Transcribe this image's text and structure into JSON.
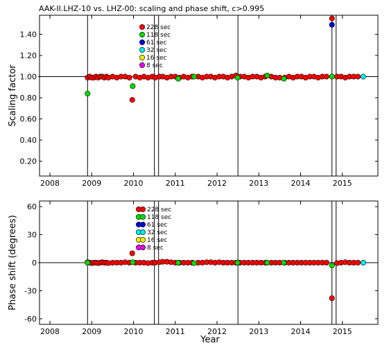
{
  "title": "AAK-II.LHZ-10 vs. LHZ-00: scaling and phase shift, c>0.995",
  "xlabel": "Year",
  "x_tick_labels": [
    "2008",
    "2009",
    "2010",
    "2011",
    "2012",
    "2013",
    "2014",
    "2015"
  ],
  "legend": [
    {
      "label": "228  sec",
      "color": "#ff0000"
    },
    {
      "label": "118  sec",
      "color": "#00dd00"
    },
    {
      "label": "  61  sec",
      "color": "#0000dd"
    },
    {
      "label": "  32  sec",
      "color": "#00eeee"
    },
    {
      "label": "  16  sec",
      "color": "#eeee00"
    },
    {
      "label": "    8  sec",
      "color": "#ee00ee"
    }
  ],
  "chart_data": [
    {
      "type": "scatter",
      "ylabel": "Scaling factor",
      "xlim": [
        2007.75,
        2015.85
      ],
      "ylim": [
        0.06,
        1.58
      ],
      "yticks": [
        0.2,
        0.4,
        0.6,
        0.8,
        1.0,
        1.2,
        1.4
      ],
      "y_tick_labels": [
        "0.20",
        "0.40",
        "0.60",
        "0.80",
        "1.00",
        "1.20",
        "1.40"
      ],
      "reference_line": 1.0,
      "event_lines": [
        2008.9,
        2010.5,
        2010.6,
        2012.5,
        2014.75,
        2014.85
      ],
      "series": [
        {
          "name": "228  sec",
          "x": [
            2008.9,
            2008.95,
            2009.0,
            2009.05,
            2009.1,
            2009.15,
            2009.2,
            2009.25,
            2009.3,
            2009.35,
            2009.4,
            2009.5,
            2009.6,
            2009.7,
            2009.8,
            2009.9,
            2009.97,
            2010.05,
            2010.15,
            2010.25,
            2010.35,
            2010.45,
            2010.52,
            2010.62,
            2010.7,
            2010.8,
            2010.9,
            2011.0,
            2011.1,
            2011.2,
            2011.3,
            2011.4,
            2011.55,
            2011.65,
            2011.75,
            2011.85,
            2011.95,
            2012.05,
            2012.15,
            2012.25,
            2012.35,
            2012.45,
            2012.55,
            2012.65,
            2012.75,
            2012.85,
            2012.95,
            2013.05,
            2013.15,
            2013.3,
            2013.4,
            2013.5,
            2013.62,
            2013.72,
            2013.82,
            2013.92,
            2014.02,
            2014.12,
            2014.22,
            2014.32,
            2014.42,
            2014.52,
            2014.62,
            2014.75,
            2014.87,
            2014.97,
            2015.07,
            2015.17,
            2015.27,
            2015.37
          ],
          "values": [
            0.99,
            1.0,
            0.99,
            0.99,
            1.0,
            0.99,
            1.0,
            1.0,
            0.99,
            1.0,
            0.99,
            1.0,
            0.99,
            1.0,
            1.0,
            0.99,
            0.78,
            1.0,
            0.99,
            1.0,
            0.99,
            1.0,
            0.99,
            1.0,
            1.0,
            0.99,
            1.0,
            1.0,
            0.99,
            1.0,
            0.99,
            1.0,
            1.0,
            0.99,
            1.0,
            1.0,
            0.99,
            1.0,
            1.0,
            0.99,
            1.0,
            1.01,
            1.0,
            1.0,
            0.99,
            1.0,
            1.0,
            0.99,
            1.0,
            1.0,
            0.99,
            0.99,
            0.99,
            1.0,
            0.99,
            1.0,
            1.0,
            0.99,
            1.0,
            1.0,
            0.99,
            1.0,
            1.0,
            1.55,
            1.0,
            1.0,
            0.99,
            1.0,
            1.0,
            1.0
          ],
          "color": "#ff0000"
        },
        {
          "name": "118  sec",
          "x": [
            2008.9,
            2009.98,
            2011.07,
            2011.45,
            2012.49,
            2013.2,
            2013.6,
            2014.75
          ],
          "values": [
            0.84,
            0.91,
            0.98,
            1.0,
            0.99,
            1.01,
            0.98,
            1.0
          ],
          "color": "#00dd00"
        },
        {
          "name": "  61  sec",
          "x": [
            2014.75
          ],
          "values": [
            1.49
          ],
          "color": "#0000dd"
        },
        {
          "name": "  32  sec",
          "x": [
            2015.5
          ],
          "values": [
            1.0
          ],
          "color": "#00eeee"
        }
      ]
    },
    {
      "type": "scatter",
      "ylabel": "Phase shift (degrees)",
      "xlim": [
        2007.75,
        2015.85
      ],
      "ylim": [
        -66,
        66
      ],
      "yticks": [
        -60,
        -30,
        0,
        30,
        60
      ],
      "y_tick_labels": [
        "-60",
        "-30",
        "0",
        "30",
        "60"
      ],
      "reference_line": 0,
      "event_lines": [
        2008.9,
        2010.5,
        2010.6,
        2012.5,
        2014.75,
        2014.85
      ],
      "series": [
        {
          "name": "228  sec",
          "x": [
            2008.9,
            2008.95,
            2009.0,
            2009.05,
            2009.1,
            2009.15,
            2009.2,
            2009.25,
            2009.3,
            2009.35,
            2009.4,
            2009.5,
            2009.6,
            2009.7,
            2009.8,
            2009.9,
            2009.97,
            2010.05,
            2010.15,
            2010.25,
            2010.35,
            2010.45,
            2010.52,
            2010.62,
            2010.7,
            2010.8,
            2010.9,
            2011.0,
            2011.1,
            2011.2,
            2011.3,
            2011.4,
            2011.55,
            2011.65,
            2011.75,
            2011.85,
            2011.95,
            2012.05,
            2012.15,
            2012.25,
            2012.35,
            2012.45,
            2012.55,
            2012.65,
            2012.75,
            2012.85,
            2012.95,
            2013.05,
            2013.15,
            2013.3,
            2013.4,
            2013.5,
            2013.62,
            2013.72,
            2013.82,
            2013.92,
            2014.02,
            2014.12,
            2014.22,
            2014.32,
            2014.42,
            2014.52,
            2014.62,
            2014.75,
            2014.87,
            2014.97,
            2015.07,
            2015.17,
            2015.27,
            2015.37
          ],
          "values": [
            0.5,
            0.0,
            -0.5,
            0.0,
            0.0,
            -0.5,
            0.0,
            0.5,
            0.0,
            0.0,
            -0.5,
            0.0,
            0.0,
            0.0,
            0.5,
            0.0,
            10.0,
            0.0,
            0.0,
            0.0,
            -0.5,
            0.0,
            0.0,
            0.5,
            1.0,
            1.0,
            0.5,
            0.0,
            0.0,
            0.0,
            0.0,
            0.0,
            0.0,
            0.0,
            0.5,
            0.5,
            0.0,
            0.5,
            0.0,
            0.0,
            0.0,
            0.0,
            0.0,
            0.0,
            0.0,
            0.0,
            0.0,
            0.0,
            0.0,
            0.0,
            0.0,
            0.0,
            0.0,
            0.0,
            0.0,
            0.0,
            0.0,
            0.0,
            0.0,
            0.0,
            0.0,
            0.0,
            0.0,
            -38.0,
            -0.5,
            0.0,
            0.5,
            0.0,
            0.0,
            0.0
          ],
          "color": "#ff0000"
        },
        {
          "name": "118  sec",
          "x": [
            2008.9,
            2009.98,
            2011.07,
            2011.45,
            2012.49,
            2013.2,
            2013.6,
            2014.75
          ],
          "values": [
            0.0,
            0.5,
            0.0,
            -0.5,
            0.0,
            0.0,
            0.0,
            -3.0
          ],
          "color": "#00dd00"
        },
        {
          "name": "  32  sec",
          "x": [
            2015.5
          ],
          "values": [
            0.0
          ],
          "color": "#00eeee"
        }
      ]
    }
  ]
}
